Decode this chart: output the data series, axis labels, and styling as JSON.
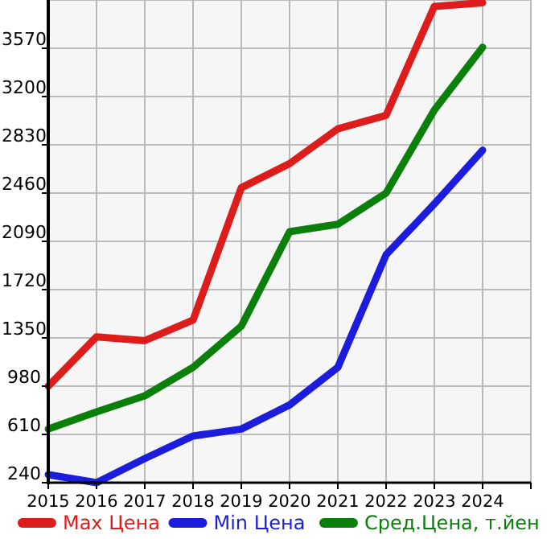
{
  "chart_data": {
    "type": "line",
    "x": [
      2015,
      2016,
      2017,
      2018,
      2019,
      2020,
      2021,
      2022,
      2023,
      2024
    ],
    "xlim": [
      2015,
      2025
    ],
    "xticks": [
      2015,
      2016,
      2017,
      2018,
      2019,
      2020,
      2021,
      2022,
      2023,
      2024
    ],
    "ylim": [
      240,
      3940
    ],
    "yticks": [
      240,
      610,
      980,
      1350,
      1720,
      2090,
      2460,
      2830,
      3200,
      3570
    ],
    "grid": true,
    "legend": "bottom",
    "marker": "none",
    "line_style": "solid",
    "series": [
      {
        "name": "Max Цена",
        "color": "#dd1c1c",
        "values": [
          980,
          1358,
          1329,
          1486,
          2501,
          2686,
          2953,
          3056,
          3891,
          3919
        ]
      },
      {
        "name": "Min Цена",
        "color": "#1c1cdd",
        "values": [
          302,
          240,
          425,
          598,
          651,
          836,
          1124,
          1987,
          2377,
          2789
        ]
      },
      {
        "name": "Сред.Цена, т.йен",
        "color": "#0a800a",
        "values": [
          651,
          783,
          906,
          1124,
          1440,
          2164,
          2221,
          2460,
          3097,
          3578
        ]
      }
    ]
  }
}
